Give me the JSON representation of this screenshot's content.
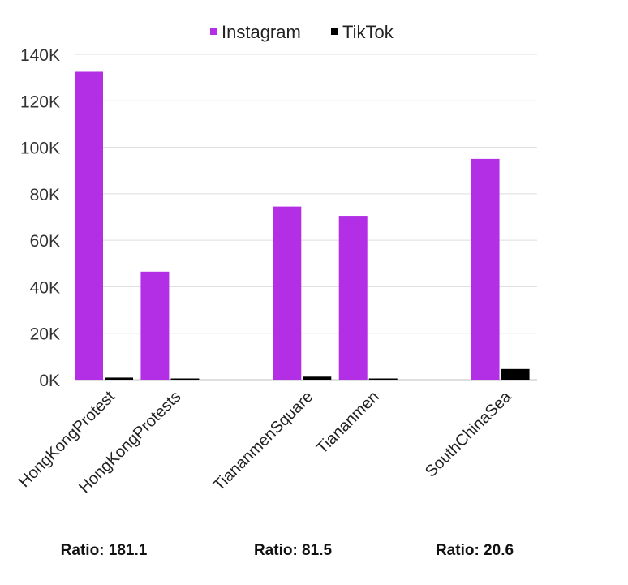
{
  "chart_data": {
    "type": "bar",
    "title": "",
    "xlabel": "",
    "ylabel": "",
    "categories": [
      "HongKongProtest",
      "HongKongProtests",
      "",
      "TiananmenSquare",
      "Tiananmen",
      "",
      "SouthChinaSea"
    ],
    "series": [
      {
        "name": "Instagram",
        "color": "#b22fe6",
        "values": [
          132500,
          46500,
          null,
          74500,
          70500,
          null,
          95000
        ]
      },
      {
        "name": "TikTok",
        "color": "#000000",
        "values": [
          900,
          300,
          null,
          1300,
          500,
          null,
          4600
        ]
      }
    ],
    "ylim": [
      0,
      140000
    ],
    "yticks": [
      0,
      20000,
      40000,
      60000,
      80000,
      100000,
      120000,
      140000
    ],
    "ytick_labels": [
      "0K",
      "20K",
      "40K",
      "60K",
      "80K",
      "100K",
      "120K",
      "140K"
    ],
    "grid": true,
    "legend_position": "top-center"
  },
  "annotations": [
    "Ratio: 181.1",
    "Ratio: 81.5",
    "Ratio: 20.6"
  ]
}
